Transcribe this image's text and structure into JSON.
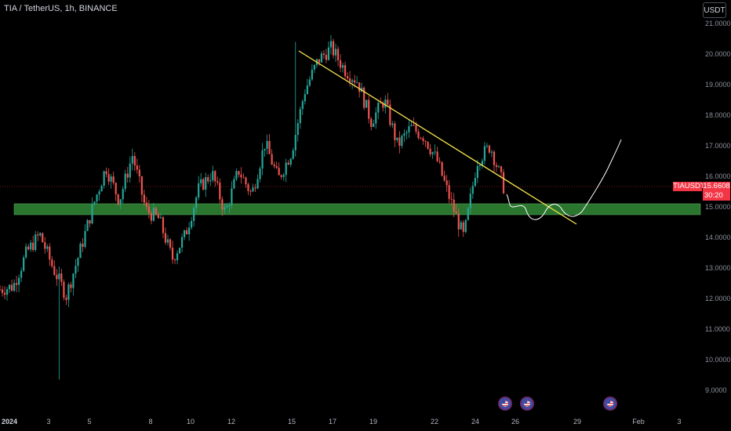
{
  "header": {
    "symbol_title": "TIA / TetherUS, 1h, BINANCE",
    "currency_button": "USDT"
  },
  "price_label": {
    "symbol": "TIAUSDT",
    "price": "15.6608",
    "countdown": "30:20"
  },
  "y_axis": {
    "ticks": [
      "21.0000",
      "20.0000",
      "19.0000",
      "18.0000",
      "17.0000",
      "16.0000",
      "15.0000",
      "14.0000",
      "13.0000",
      "12.0000",
      "11.0000",
      "10.0000",
      "9.0000"
    ]
  },
  "x_axis": {
    "ticks": [
      "2024",
      "3",
      "5",
      "8",
      "10",
      "12",
      "15",
      "17",
      "19",
      "22",
      "24",
      "26",
      "29",
      "Feb",
      "3"
    ]
  },
  "colors": {
    "up_candle": "#26a69a",
    "down_candle": "#ef5350",
    "trendline": "#f5e44c",
    "zone_fill": "#2e7d32",
    "projection": "#ffffff",
    "price_tag": "#f23645"
  },
  "icons": {
    "event_markers": [
      "us-flag-event-icon",
      "us-flag-event-icon",
      "us-flag-event-icon"
    ]
  },
  "chart_data": {
    "type": "candlestick",
    "symbol": "TIAUSDT",
    "interval": "1h",
    "exchange": "BINANCE",
    "ylim": [
      9.0,
      21.0
    ],
    "current_price": 15.6608,
    "price_path": [
      {
        "date": "Jan 1",
        "price": 12.3
      },
      {
        "date": "Jan 2",
        "price": 12.4
      },
      {
        "date": "Jan 2",
        "price": 13.5
      },
      {
        "date": "Jan 2",
        "price": 14.1
      },
      {
        "date": "Jan 3",
        "price": 13.0
      },
      {
        "date": "Jan 3",
        "price": 12.1
      },
      {
        "date": "Jan 4",
        "price": 13.5
      },
      {
        "date": "Jan 4",
        "price": 15.0
      },
      {
        "date": "Jan 5",
        "price": 16.3
      },
      {
        "date": "Jan 5",
        "price": 15.2
      },
      {
        "date": "Jan 6",
        "price": 16.7
      },
      {
        "date": "Jan 6",
        "price": 14.9
      },
      {
        "date": "Jan 7",
        "price": 14.6
      },
      {
        "date": "Jan 8",
        "price": 13.3
      },
      {
        "date": "Jan 8",
        "price": 14.1
      },
      {
        "date": "Jan 9",
        "price": 15.6
      },
      {
        "date": "Jan 9",
        "price": 16.1
      },
      {
        "date": "Jan 10",
        "price": 14.8
      },
      {
        "date": "Jan 11",
        "price": 16.2
      },
      {
        "date": "Jan 11",
        "price": 15.4
      },
      {
        "date": "Jan 12",
        "price": 17.1
      },
      {
        "date": "Jan 13",
        "price": 15.9
      },
      {
        "date": "Jan 13",
        "price": 16.8
      },
      {
        "date": "Jan 14",
        "price": 18.8
      },
      {
        "date": "Jan 15",
        "price": 19.8
      },
      {
        "date": "Jan 15",
        "price": 20.2
      },
      {
        "date": "Jan 16",
        "price": 19.5
      },
      {
        "date": "Jan 17",
        "price": 19.1
      },
      {
        "date": "Jan 18",
        "price": 17.8
      },
      {
        "date": "Jan 19",
        "price": 18.5
      },
      {
        "date": "Jan 19",
        "price": 17.0
      },
      {
        "date": "Jan 20",
        "price": 17.6
      },
      {
        "date": "Jan 21",
        "price": 17.3
      },
      {
        "date": "Jan 22",
        "price": 16.5
      },
      {
        "date": "Jan 23",
        "price": 15.2
      },
      {
        "date": "Jan 23",
        "price": 14.0
      },
      {
        "date": "Jan 24",
        "price": 16.5
      },
      {
        "date": "Jan 24",
        "price": 17.0
      },
      {
        "date": "Jan 25",
        "price": 15.66
      }
    ],
    "annotations": [
      {
        "type": "trendline",
        "from": {
          "date": "Jan 15",
          "price": 20.2
        },
        "to": {
          "date": "Jan 28",
          "price": 14.5
        }
      },
      {
        "type": "zone",
        "from_price": 14.85,
        "to_price": 15.05
      },
      {
        "type": "projection",
        "path": [
          15.3,
          15.0,
          14.85,
          15.25,
          14.85,
          15.1,
          14.95,
          15.8,
          17.1
        ]
      }
    ],
    "hourly_range": {
      "low": 9.35,
      "high": 20.4
    }
  }
}
